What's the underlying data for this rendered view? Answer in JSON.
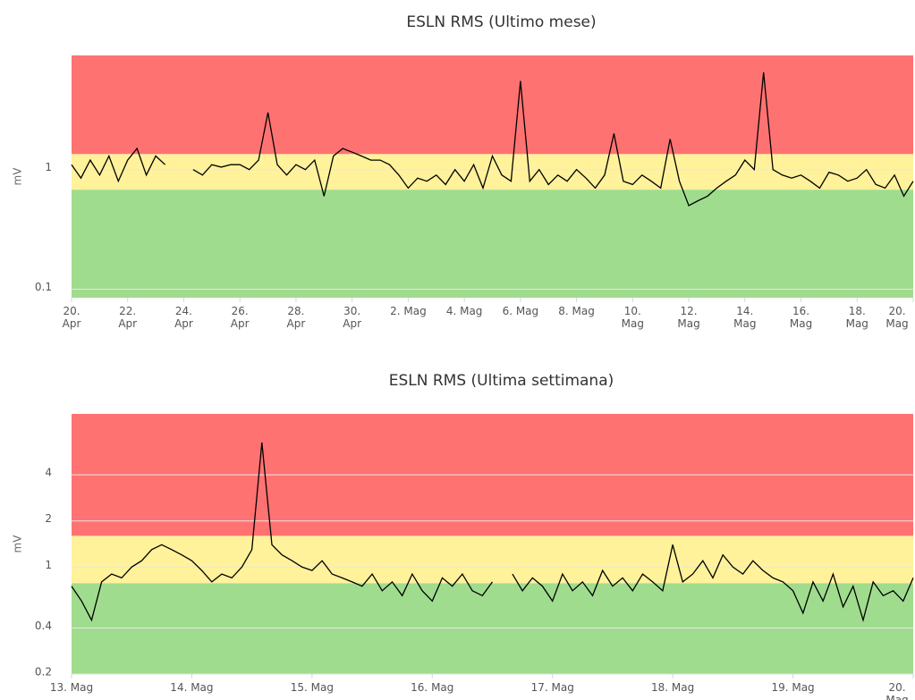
{
  "chart_data": [
    {
      "type": "line",
      "title": "ESLN RMS (Ultimo mese)",
      "y_label": "mV",
      "log_y": true,
      "grid": true,
      "color": "#000000",
      "ylim": [
        0.085,
        9
      ],
      "yticks": [
        0.1,
        1
      ],
      "thresholds": [
        0.68,
        1.35
      ],
      "band_colors": [
        "#a0dc8e",
        "#fff29a",
        "#ff7272"
      ],
      "xlim": [
        "04-20 00:00",
        "05-20 00:00"
      ],
      "xticks": [
        {
          "value": "04-20 00:00",
          "label": "20.\nApr"
        },
        {
          "value": "04-22 00:00",
          "label": "22.\nApr"
        },
        {
          "value": "04-24 00:00",
          "label": "24.\nApr"
        },
        {
          "value": "04-26 00:00",
          "label": "26.\nApr"
        },
        {
          "value": "04-28 00:00",
          "label": "28.\nApr"
        },
        {
          "value": "04-30 00:00",
          "label": "30.\nApr"
        },
        {
          "value": "05-02 00:00",
          "label": "2. Mag"
        },
        {
          "value": "05-04 00:00",
          "label": "4. Mag"
        },
        {
          "value": "05-06 00:00",
          "label": "6. Mag"
        },
        {
          "value": "05-08 00:00",
          "label": "8. Mag"
        },
        {
          "value": "05-10 00:00",
          "label": "10.\nMag"
        },
        {
          "value": "05-12 00:00",
          "label": "12.\nMag"
        },
        {
          "value": "05-14 00:00",
          "label": "14.\nMag"
        },
        {
          "value": "05-16 00:00",
          "label": "16.\nMag"
        },
        {
          "value": "05-18 00:00",
          "label": "18.\nMag"
        },
        {
          "value": "05-20 00:00",
          "label": "20.\nMag"
        }
      ],
      "x": [
        "04-20 00:00",
        "04-20 08:00",
        "04-20 16:00",
        "04-21 00:00",
        "04-21 08:00",
        "04-21 16:00",
        "04-22 00:00",
        "04-22 08:00",
        "04-22 16:00",
        "04-23 00:00",
        "04-23 08:00",
        "04-23 16:00",
        "04-24 00:00",
        "04-24 08:00",
        "04-24 16:00",
        "04-25 00:00",
        "04-25 08:00",
        "04-25 16:00",
        "04-26 00:00",
        "04-26 08:00",
        "04-26 16:00",
        "04-27 00:00",
        "04-27 08:00",
        "04-27 16:00",
        "04-28 00:00",
        "04-28 08:00",
        "04-28 16:00",
        "04-29 00:00",
        "04-29 08:00",
        "04-29 16:00",
        "04-30 00:00",
        "04-30 08:00",
        "04-30 16:00",
        "05-01 00:00",
        "05-01 08:00",
        "05-01 16:00",
        "05-02 00:00",
        "05-02 08:00",
        "05-02 16:00",
        "05-03 00:00",
        "05-03 08:00",
        "05-03 16:00",
        "05-04 00:00",
        "05-04 08:00",
        "05-04 16:00",
        "05-05 00:00",
        "05-05 08:00",
        "05-05 16:00",
        "05-06 00:00",
        "05-06 08:00",
        "05-06 16:00",
        "05-07 00:00",
        "05-07 08:00",
        "05-07 16:00",
        "05-08 00:00",
        "05-08 08:00",
        "05-08 16:00",
        "05-09 00:00",
        "05-09 08:00",
        "05-09 16:00",
        "05-10 00:00",
        "05-10 08:00",
        "05-10 16:00",
        "05-11 00:00",
        "05-11 08:00",
        "05-11 16:00",
        "05-12 00:00",
        "05-12 08:00",
        "05-12 16:00",
        "05-13 00:00",
        "05-13 08:00",
        "05-13 16:00",
        "05-14 00:00",
        "05-14 08:00",
        "05-14 16:00",
        "05-15 00:00",
        "05-15 08:00",
        "05-15 16:00",
        "05-16 00:00",
        "05-16 08:00",
        "05-16 16:00",
        "05-17 00:00",
        "05-17 08:00",
        "05-17 16:00",
        "05-18 00:00",
        "05-18 08:00",
        "05-18 16:00",
        "05-19 00:00",
        "05-19 08:00",
        "05-19 16:00",
        "05-20 00:00"
      ],
      "values": [
        1.1,
        0.85,
        1.2,
        0.9,
        1.3,
        0.8,
        1.2,
        1.5,
        0.9,
        1.3,
        1.1,
        null,
        null,
        1.0,
        0.9,
        1.1,
        1.05,
        1.1,
        1.1,
        1.0,
        1.2,
        3.0,
        1.1,
        0.9,
        1.1,
        1.0,
        1.2,
        0.6,
        1.3,
        1.5,
        1.4,
        1.3,
        1.2,
        1.2,
        1.1,
        0.9,
        0.7,
        0.85,
        0.8,
        0.9,
        0.75,
        1.0,
        0.8,
        1.1,
        0.7,
        1.3,
        0.9,
        0.8,
        5.5,
        0.8,
        1.0,
        0.75,
        0.9,
        0.8,
        1.0,
        0.85,
        0.7,
        0.9,
        2.0,
        0.8,
        0.75,
        0.9,
        0.8,
        0.7,
        1.8,
        0.8,
        0.5,
        0.55,
        0.6,
        0.7,
        0.8,
        0.9,
        1.2,
        1.0,
        6.5,
        1.0,
        0.9,
        0.85,
        0.9,
        0.8,
        0.7,
        0.95,
        0.9,
        0.8,
        0.85,
        1.0,
        0.75,
        0.7,
        0.9,
        0.6,
        0.8
      ]
    },
    {
      "type": "line",
      "title": "ESLN RMS (Ultima settimana)",
      "y_label": "mV",
      "log_y": true,
      "grid": true,
      "color": "#000000",
      "ylim": [
        0.2,
        10
      ],
      "yticks": [
        0.2,
        0.4,
        1,
        2,
        4
      ],
      "thresholds": [
        0.785,
        1.6
      ],
      "band_colors": [
        "#a0dc8e",
        "#fff29a",
        "#ff7272"
      ],
      "xlim": [
        "05-13 00:00",
        "05-20 00:00"
      ],
      "xticks": [
        {
          "value": "05-13 00:00",
          "label": "13. Mag"
        },
        {
          "value": "05-14 00:00",
          "label": "14. Mag"
        },
        {
          "value": "05-15 00:00",
          "label": "15. Mag"
        },
        {
          "value": "05-16 00:00",
          "label": "16. Mag"
        },
        {
          "value": "05-17 00:00",
          "label": "17. Mag"
        },
        {
          "value": "05-18 00:00",
          "label": "18. Mag"
        },
        {
          "value": "05-19 00:00",
          "label": "19. Mag"
        },
        {
          "value": "05-20 00:00",
          "label": "20. Mag"
        }
      ],
      "x": [
        "05-13 00:00",
        "05-13 02:00",
        "05-13 04:00",
        "05-13 06:00",
        "05-13 08:00",
        "05-13 10:00",
        "05-13 12:00",
        "05-13 14:00",
        "05-13 16:00",
        "05-13 18:00",
        "05-13 20:00",
        "05-13 22:00",
        "05-14 00:00",
        "05-14 02:00",
        "05-14 04:00",
        "05-14 06:00",
        "05-14 08:00",
        "05-14 10:00",
        "05-14 12:00",
        "05-14 14:00",
        "05-14 16:00",
        "05-14 18:00",
        "05-14 20:00",
        "05-14 22:00",
        "05-15 00:00",
        "05-15 02:00",
        "05-15 04:00",
        "05-15 06:00",
        "05-15 08:00",
        "05-15 10:00",
        "05-15 12:00",
        "05-15 14:00",
        "05-15 16:00",
        "05-15 18:00",
        "05-15 20:00",
        "05-15 22:00",
        "05-16 00:00",
        "05-16 02:00",
        "05-16 04:00",
        "05-16 06:00",
        "05-16 08:00",
        "05-16 10:00",
        "05-16 12:00",
        "05-16 14:00",
        "05-16 16:00",
        "05-16 18:00",
        "05-16 20:00",
        "05-16 22:00",
        "05-17 00:00",
        "05-17 02:00",
        "05-17 04:00",
        "05-17 06:00",
        "05-17 08:00",
        "05-17 10:00",
        "05-17 12:00",
        "05-17 14:00",
        "05-17 16:00",
        "05-17 18:00",
        "05-17 20:00",
        "05-17 22:00",
        "05-18 00:00",
        "05-18 02:00",
        "05-18 04:00",
        "05-18 06:00",
        "05-18 08:00",
        "05-18 10:00",
        "05-18 12:00",
        "05-18 14:00",
        "05-18 16:00",
        "05-18 18:00",
        "05-18 20:00",
        "05-18 22:00",
        "05-19 00:00",
        "05-19 02:00",
        "05-19 04:00",
        "05-19 06:00",
        "05-19 08:00",
        "05-19 10:00",
        "05-19 12:00",
        "05-19 14:00",
        "05-19 16:00",
        "05-19 18:00",
        "05-19 20:00",
        "05-19 22:00",
        "05-20 00:00"
      ],
      "values": [
        0.75,
        0.6,
        0.45,
        0.8,
        0.9,
        0.85,
        1.0,
        1.1,
        1.3,
        1.4,
        1.3,
        1.2,
        1.1,
        0.95,
        0.8,
        0.9,
        0.85,
        1.0,
        1.3,
        6.5,
        1.4,
        1.2,
        1.1,
        1.0,
        0.95,
        1.1,
        0.9,
        0.85,
        0.8,
        0.75,
        0.9,
        0.7,
        0.8,
        0.65,
        0.9,
        0.7,
        0.6,
        0.85,
        0.75,
        0.9,
        0.7,
        0.65,
        0.8,
        null,
        0.9,
        0.7,
        0.85,
        0.75,
        0.6,
        0.9,
        0.7,
        0.8,
        0.65,
        0.95,
        0.75,
        0.85,
        0.7,
        0.9,
        0.8,
        0.7,
        1.4,
        0.8,
        0.9,
        1.1,
        0.85,
        1.2,
        1.0,
        0.9,
        1.1,
        0.95,
        0.85,
        0.8,
        0.7,
        0.5,
        0.8,
        0.6,
        0.9,
        0.55,
        0.75,
        0.45,
        0.8,
        0.65,
        0.7,
        0.6,
        0.85
      ]
    }
  ]
}
